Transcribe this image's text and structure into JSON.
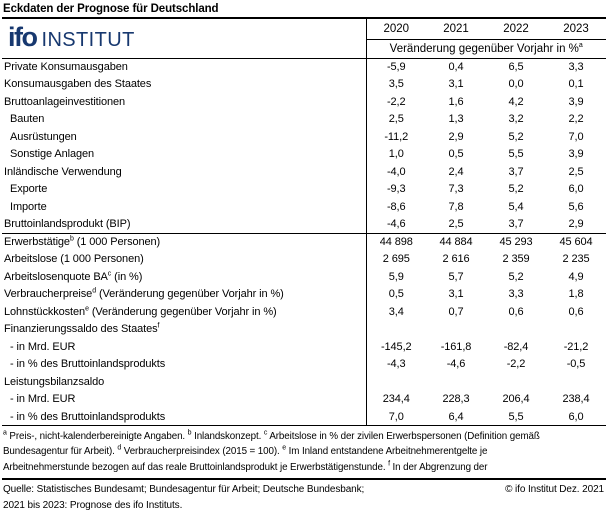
{
  "title": "Eckdaten der Prognose für Deutschland",
  "colors": {
    "brand_navy": "#17386f",
    "border": "#000000",
    "text": "#000000",
    "background": "#ffffff"
  },
  "logo": {
    "name": "ifo",
    "suffix": "INSTITUT"
  },
  "table": {
    "years": [
      "2020",
      "2021",
      "2022",
      "2023"
    ],
    "subheader": {
      "text": "Veränderung gegenüber Vorjahr in %",
      "sup": "a"
    },
    "rows": [
      {
        "pre": "Private Konsumausgaben",
        "sup": "",
        "post": "",
        "indent": false,
        "section": false,
        "values": [
          "-5,9",
          "0,4",
          "6,5",
          "3,3"
        ]
      },
      {
        "pre": "Konsumausgaben des Staates",
        "sup": "",
        "post": "",
        "indent": false,
        "section": false,
        "values": [
          "3,5",
          "3,1",
          "0,0",
          "0,1"
        ]
      },
      {
        "pre": "Bruttoanlageinvestitionen",
        "sup": "",
        "post": "",
        "indent": false,
        "section": false,
        "values": [
          "-2,2",
          "1,6",
          "4,2",
          "3,9"
        ]
      },
      {
        "pre": "Bauten",
        "sup": "",
        "post": "",
        "indent": true,
        "section": false,
        "values": [
          "2,5",
          "1,3",
          "3,2",
          "2,2"
        ]
      },
      {
        "pre": "Ausrüstungen",
        "sup": "",
        "post": "",
        "indent": true,
        "section": false,
        "values": [
          "-11,2",
          "2,9",
          "5,2",
          "7,0"
        ]
      },
      {
        "pre": "Sonstige Anlagen",
        "sup": "",
        "post": "",
        "indent": true,
        "section": false,
        "values": [
          "1,0",
          "0,5",
          "5,5",
          "3,9"
        ]
      },
      {
        "pre": "Inländische Verwendung",
        "sup": "",
        "post": "",
        "indent": false,
        "section": false,
        "values": [
          "-4,0",
          "2,4",
          "3,7",
          "2,5"
        ]
      },
      {
        "pre": "Exporte",
        "sup": "",
        "post": "",
        "indent": true,
        "section": false,
        "values": [
          "-9,3",
          "7,3",
          "5,2",
          "6,0"
        ]
      },
      {
        "pre": "Importe",
        "sup": "",
        "post": "",
        "indent": true,
        "section": false,
        "values": [
          "-8,6",
          "7,8",
          "5,4",
          "5,6"
        ]
      },
      {
        "pre": "Bruttoinlandsprodukt (BIP)",
        "sup": "",
        "post": "",
        "indent": false,
        "section": false,
        "values": [
          "-4,6",
          "2,5",
          "3,7",
          "2,9"
        ]
      },
      {
        "pre": "Erwerbstätige",
        "sup": "b",
        "post": " (1 000 Personen)",
        "indent": false,
        "section": true,
        "values": [
          "44 898",
          "44 884",
          "45 293",
          "45 604"
        ]
      },
      {
        "pre": "Arbeitslose (1 000 Personen)",
        "sup": "",
        "post": "",
        "indent": false,
        "section": false,
        "values": [
          "2 695",
          "2 616",
          "2 359",
          "2 235"
        ]
      },
      {
        "pre": "Arbeitslosenquote BA",
        "sup": "c",
        "post": " (in %)",
        "indent": false,
        "section": false,
        "values": [
          "5,9",
          "5,7",
          "5,2",
          "4,9"
        ]
      },
      {
        "pre": "Verbraucherpreise",
        "sup": "d",
        "post": " (Veränderung gegenüber Vorjahr in %)",
        "indent": false,
        "section": false,
        "values": [
          "0,5",
          "3,1",
          "3,3",
          "1,8"
        ]
      },
      {
        "pre": "Lohnstückkosten",
        "sup": "e",
        "post": " (Veränderung gegenüber Vorjahr in %)",
        "indent": false,
        "section": false,
        "values": [
          "3,4",
          "0,7",
          "0,6",
          "0,6"
        ]
      },
      {
        "pre": "Finanzierungssaldo des Staates",
        "sup": "f",
        "post": "",
        "indent": false,
        "section": false,
        "values": [
          "",
          "",
          "",
          ""
        ]
      },
      {
        "pre": "- in Mrd. EUR",
        "sup": "",
        "post": "",
        "indent": true,
        "section": false,
        "values": [
          "-145,2",
          "-161,8",
          "-82,4",
          "-21,2"
        ]
      },
      {
        "pre": "- in % des Bruttoinlandsprodukts",
        "sup": "",
        "post": "",
        "indent": true,
        "section": false,
        "values": [
          "-4,3",
          "-4,6",
          "-2,2",
          "-0,5"
        ]
      },
      {
        "pre": "Leistungsbilanzsaldo",
        "sup": "",
        "post": "",
        "indent": false,
        "section": false,
        "values": [
          "",
          "",
          "",
          ""
        ]
      },
      {
        "pre": "- in Mrd. EUR",
        "sup": "",
        "post": "",
        "indent": true,
        "section": false,
        "values": [
          "234,4",
          "228,3",
          "206,4",
          "238,4"
        ]
      },
      {
        "pre": "- in % des Bruttoinlandsprodukts",
        "sup": "",
        "post": "",
        "indent": true,
        "section": false,
        "values": [
          "7,0",
          "6,4",
          "5,5",
          "6,0"
        ]
      }
    ]
  },
  "footnotes": {
    "lines": [
      [
        {
          "sup": "a",
          "text": " Preis-, nicht-kalenderbereinigte Angaben. "
        },
        {
          "sup": "b",
          "text": " Inlandskonzept. "
        },
        {
          "sup": "c",
          "text": " Arbeitslose in % der zivilen Erwerbspersonen (Definition gemäß"
        }
      ],
      [
        {
          "sup": "",
          "text": "Bundesagentur für Arbeit). "
        },
        {
          "sup": "d",
          "text": " Verbraucherpreisindex (2015 = 100). "
        },
        {
          "sup": "e",
          "text": " Im Inland entstandene Arbeitnehmerentgelte je"
        }
      ],
      [
        {
          "sup": "",
          "text": "Arbeitnehmerstunde bezogen auf das reale Bruttoinlandsprodukt je Erwerbstätigenstunde. "
        },
        {
          "sup": "f",
          "text": " In der Abgrenzung der"
        }
      ]
    ]
  },
  "source": {
    "line1": "Quelle: Statistisches Bundesamt; Bundesagentur für Arbeit; Deutsche Bundesbank;",
    "line2": "2021 bis 2023: Prognose des ifo Instituts.",
    "copyright": "© ifo Institut Dez. 2021"
  }
}
